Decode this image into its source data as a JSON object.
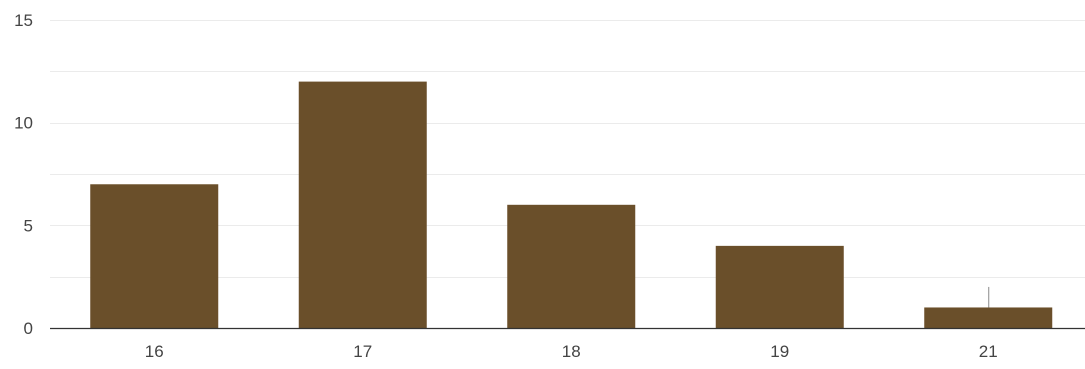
{
  "chart_data": {
    "type": "bar",
    "categories": [
      "16",
      "17",
      "18",
      "19",
      "21"
    ],
    "values": [
      7,
      12,
      6,
      4,
      1
    ],
    "ylim": [
      0,
      15
    ],
    "yticks": [
      0,
      5,
      10,
      15
    ],
    "yticks_labels": [
      "0",
      "5",
      "10",
      "15"
    ],
    "title": "",
    "xlabel": "",
    "ylabel": "",
    "grid": true,
    "minor_grid": true,
    "colors": {
      "bar": "#6a4f2a",
      "grid": "#ebebeb",
      "axis": "#333333",
      "text": "#444444"
    }
  }
}
